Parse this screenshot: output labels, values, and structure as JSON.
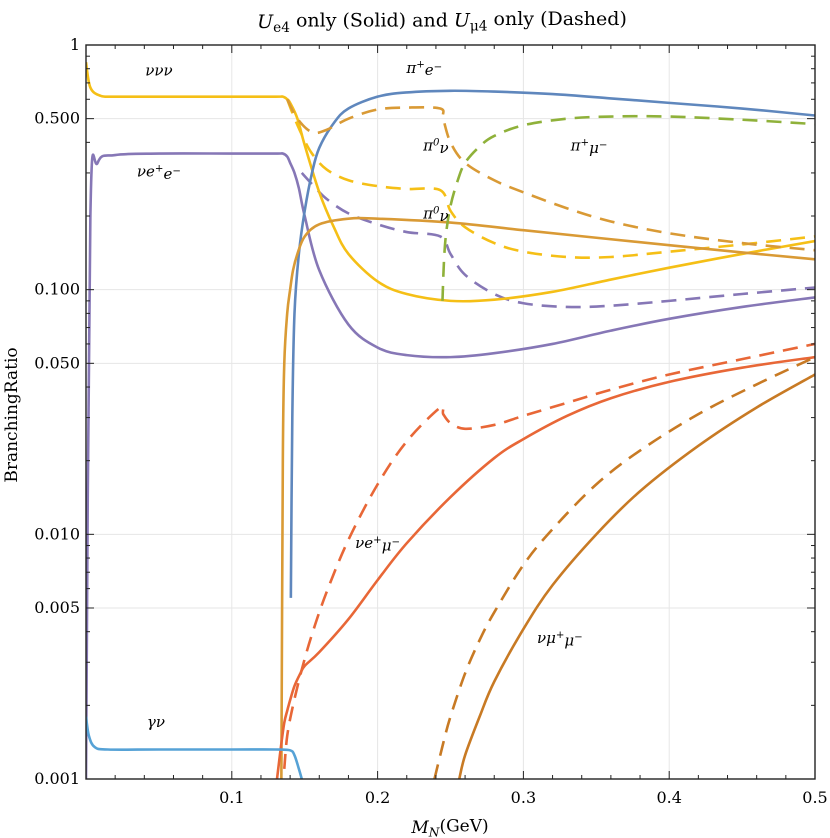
{
  "chart_data": {
    "type": "line",
    "title": "U_e4 only (Solid) and U_μ4 only (Dashed)",
    "title_parts": [
      {
        "t": "U",
        "italic": true
      },
      {
        "t": "e4",
        "sub": true
      },
      {
        "t": " only (Solid) and "
      },
      {
        "t": "U",
        "italic": true
      },
      {
        "t": "μ4",
        "sub": true
      },
      {
        "t": " only (Dashed)"
      }
    ],
    "xlabel": "M_N(GeV)",
    "xlabel_parts": [
      {
        "t": "M",
        "italic": true
      },
      {
        "t": "N",
        "sub": true,
        "italic": true
      },
      {
        "t": "(GeV)"
      }
    ],
    "ylabel": "BranchingRatio",
    "x_scale": "linear",
    "y_scale": "log",
    "xlim": [
      0.0,
      0.5
    ],
    "ylim": [
      0.001,
      1.0
    ],
    "x_ticks": [
      {
        "value": 0.1,
        "label": "0.1"
      },
      {
        "value": 0.2,
        "label": "0.2"
      },
      {
        "value": 0.3,
        "label": "0.3"
      },
      {
        "value": 0.4,
        "label": "0.4"
      },
      {
        "value": 0.5,
        "label": "0.5"
      }
    ],
    "y_ticks": [
      {
        "value": 1.0,
        "label": "1"
      },
      {
        "value": 0.5,
        "label": "0.500"
      },
      {
        "value": 0.1,
        "label": "0.100"
      },
      {
        "value": 0.05,
        "label": "0.050"
      },
      {
        "value": 0.01,
        "label": "0.010"
      },
      {
        "value": 0.005,
        "label": "0.005"
      },
      {
        "value": 0.001,
        "label": "0.001"
      }
    ],
    "series": [
      {
        "name": "νe+e- (Ue4)",
        "style": "solid",
        "color": "#8677b6",
        "x": [
          0.0,
          0.003,
          0.008,
          0.02,
          0.05,
          0.1,
          0.13,
          0.135,
          0.138,
          0.14,
          0.143,
          0.146,
          0.15,
          0.16,
          0.18,
          0.2,
          0.22,
          0.25,
          0.28,
          0.32,
          0.36,
          0.4,
          0.45,
          0.5
        ],
        "y": [
          0.001,
          0.2,
          0.33,
          0.355,
          0.36,
          0.36,
          0.36,
          0.36,
          0.35,
          0.33,
          0.3,
          0.26,
          0.2,
          0.12,
          0.072,
          0.058,
          0.054,
          0.053,
          0.055,
          0.06,
          0.068,
          0.076,
          0.085,
          0.093
        ]
      },
      {
        "name": "νe+e- (Uμ4)",
        "style": "dashed",
        "color": "#8677b6",
        "x": [
          0.148,
          0.155,
          0.165,
          0.18,
          0.2,
          0.22,
          0.243,
          0.25,
          0.26,
          0.28,
          0.3,
          0.33,
          0.36,
          0.4,
          0.45,
          0.5
        ],
        "y": [
          0.3,
          0.27,
          0.235,
          0.205,
          0.185,
          0.172,
          0.165,
          0.14,
          0.115,
          0.096,
          0.088,
          0.085,
          0.086,
          0.09,
          0.096,
          0.102
        ]
      },
      {
        "name": "ννν (Ue4)",
        "style": "solid",
        "color": "#f5bf16",
        "x": [
          0.0,
          0.003,
          0.01,
          0.02,
          0.05,
          0.1,
          0.13,
          0.135,
          0.138,
          0.14,
          0.145,
          0.15,
          0.16,
          0.17,
          0.18,
          0.2,
          0.22,
          0.25,
          0.28,
          0.32,
          0.36,
          0.4,
          0.45,
          0.5
        ],
        "y": [
          0.85,
          0.67,
          0.62,
          0.615,
          0.615,
          0.615,
          0.615,
          0.615,
          0.6,
          0.58,
          0.5,
          0.39,
          0.25,
          0.18,
          0.14,
          0.108,
          0.096,
          0.09,
          0.091,
          0.098,
          0.11,
          0.123,
          0.14,
          0.158
        ]
      },
      {
        "name": "ννν (Uμ4)",
        "style": "dashed",
        "color": "#f5bf16",
        "x": [
          0.138,
          0.142,
          0.148,
          0.155,
          0.165,
          0.18,
          0.2,
          0.22,
          0.243,
          0.25,
          0.26,
          0.28,
          0.3,
          0.33,
          0.36,
          0.4,
          0.45,
          0.5
        ],
        "y": [
          0.6,
          0.52,
          0.43,
          0.36,
          0.31,
          0.28,
          0.265,
          0.258,
          0.255,
          0.21,
          0.18,
          0.155,
          0.143,
          0.136,
          0.136,
          0.143,
          0.153,
          0.165
        ]
      },
      {
        "name": "π+e- (Ue4)",
        "style": "solid",
        "color": "#5f87bd",
        "x": [
          0.1405,
          0.1415,
          0.143,
          0.146,
          0.15,
          0.155,
          0.16,
          0.17,
          0.18,
          0.2,
          0.22,
          0.25,
          0.28,
          0.32,
          0.36,
          0.4,
          0.45,
          0.5
        ],
        "y": [
          0.0055,
          0.03,
          0.08,
          0.14,
          0.21,
          0.3,
          0.38,
          0.48,
          0.55,
          0.615,
          0.64,
          0.65,
          0.645,
          0.63,
          0.605,
          0.58,
          0.55,
          0.515
        ]
      },
      {
        "name": "π0ν (Ue4)",
        "style": "solid",
        "color": "#d99a35",
        "x": [
          0.134,
          0.135,
          0.136,
          0.138,
          0.14,
          0.142,
          0.145,
          0.15,
          0.16,
          0.18,
          0.2,
          0.25,
          0.3,
          0.35,
          0.4,
          0.45,
          0.5
        ],
        "y": [
          0.001,
          0.02,
          0.05,
          0.08,
          0.1,
          0.12,
          0.14,
          0.165,
          0.185,
          0.195,
          0.195,
          0.188,
          0.175,
          0.163,
          0.152,
          0.142,
          0.133
        ]
      },
      {
        "name": "π0ν (Uμ4)",
        "style": "dashed",
        "color": "#d99a35",
        "x": [
          0.138,
          0.145,
          0.155,
          0.165,
          0.18,
          0.2,
          0.22,
          0.243,
          0.245,
          0.25,
          0.26,
          0.28,
          0.3,
          0.33,
          0.36,
          0.4,
          0.45,
          0.5
        ],
        "y": [
          0.6,
          0.5,
          0.44,
          0.45,
          0.5,
          0.545,
          0.555,
          0.55,
          0.5,
          0.4,
          0.33,
          0.28,
          0.25,
          0.215,
          0.19,
          0.17,
          0.155,
          0.145
        ]
      },
      {
        "name": "π+μ- (Uμ4)",
        "style": "dashed",
        "color": "#8fb13a",
        "x": [
          0.2445,
          0.2455,
          0.247,
          0.25,
          0.255,
          0.26,
          0.27,
          0.28,
          0.3,
          0.33,
          0.36,
          0.4,
          0.45,
          0.5
        ],
        "y": [
          0.09,
          0.13,
          0.17,
          0.22,
          0.28,
          0.33,
          0.385,
          0.425,
          0.47,
          0.5,
          0.51,
          0.51,
          0.495,
          0.475
        ]
      },
      {
        "name": "νe+μ- (Ue4)",
        "style": "solid",
        "color": "#e86737",
        "x": [
          0.131,
          0.134,
          0.136,
          0.138,
          0.14,
          0.143,
          0.147,
          0.15,
          0.16,
          0.18,
          0.2,
          0.22,
          0.25,
          0.28,
          0.3,
          0.33,
          0.36,
          0.4,
          0.45,
          0.5
        ],
        "y": [
          0.001,
          0.0014,
          0.0017,
          0.0019,
          0.0021,
          0.0024,
          0.0027,
          0.0029,
          0.0033,
          0.0045,
          0.0065,
          0.0092,
          0.0142,
          0.0205,
          0.0245,
          0.0305,
          0.036,
          0.042,
          0.048,
          0.053
        ]
      },
      {
        "name": "νe+μ- (Uμ4)",
        "style": "dashed",
        "color": "#e86737",
        "x": [
          0.136,
          0.138,
          0.142,
          0.148,
          0.155,
          0.165,
          0.18,
          0.2,
          0.22,
          0.243,
          0.245,
          0.25,
          0.26,
          0.28,
          0.3,
          0.33,
          0.36,
          0.4,
          0.45,
          0.5
        ],
        "y": [
          0.0011,
          0.0015,
          0.002,
          0.0028,
          0.0039,
          0.0058,
          0.0095,
          0.016,
          0.024,
          0.033,
          0.031,
          0.0285,
          0.027,
          0.028,
          0.0305,
          0.0345,
          0.039,
          0.045,
          0.052,
          0.06
        ]
      },
      {
        "name": "νμ+μ- (Ue4)",
        "style": "solid",
        "color": "#c87a24",
        "x": [
          0.256,
          0.26,
          0.27,
          0.28,
          0.3,
          0.32,
          0.35,
          0.38,
          0.42,
          0.46,
          0.5
        ],
        "y": [
          0.001,
          0.00125,
          0.0018,
          0.0025,
          0.0041,
          0.0062,
          0.01,
          0.015,
          0.023,
          0.033,
          0.045
        ]
      },
      {
        "name": "νμ+μ- (Uμ4)",
        "style": "dashed",
        "color": "#c87a24",
        "x": [
          0.239,
          0.245,
          0.25,
          0.26,
          0.27,
          0.28,
          0.3,
          0.32,
          0.35,
          0.38,
          0.42,
          0.46,
          0.5
        ],
        "y": [
          0.001,
          0.0014,
          0.0018,
          0.0027,
          0.0037,
          0.0048,
          0.0075,
          0.0105,
          0.016,
          0.022,
          0.031,
          0.041,
          0.053
        ]
      },
      {
        "name": "γν (Ue4)",
        "style": "solid",
        "color": "#56a2d6",
        "x": [
          0.0,
          0.002,
          0.006,
          0.015,
          0.05,
          0.1,
          0.13,
          0.14,
          0.143,
          0.146,
          0.148
        ],
        "y": [
          0.0018,
          0.0015,
          0.00135,
          0.00132,
          0.00132,
          0.00132,
          0.00132,
          0.00131,
          0.00125,
          0.0011,
          0.001
        ]
      }
    ],
    "annotations": [
      {
        "id": "nununu",
        "text": "ννν",
        "parts": [
          {
            "t": "ννν"
          }
        ],
        "x": 0.05,
        "y": 0.75
      },
      {
        "id": "pi-e",
        "text": "π+e-",
        "parts": [
          {
            "t": "π"
          },
          {
            "t": "+",
            "sup": true
          },
          {
            "t": "e"
          },
          {
            "t": "−",
            "sup": true
          }
        ],
        "x": 0.232,
        "y": 0.77
      },
      {
        "id": "nu-ee",
        "text": "νe+e-",
        "parts": [
          {
            "t": "νe"
          },
          {
            "t": "+",
            "sup": true
          },
          {
            "t": "e"
          },
          {
            "t": "−",
            "sup": true
          }
        ],
        "x": 0.05,
        "y": 0.29
      },
      {
        "id": "pi0-nu-upper",
        "text": "π0ν",
        "parts": [
          {
            "t": "π"
          },
          {
            "t": "0",
            "sup": true
          },
          {
            "t": "ν"
          }
        ],
        "x": 0.24,
        "y": 0.37
      },
      {
        "id": "pi-mu",
        "text": "π+μ-",
        "parts": [
          {
            "t": "π"
          },
          {
            "t": "+",
            "sup": true
          },
          {
            "t": "μ"
          },
          {
            "t": "−",
            "sup": true
          }
        ],
        "x": 0.345,
        "y": 0.37
      },
      {
        "id": "pi0-nu-lower",
        "text": "π0ν",
        "parts": [
          {
            "t": "π"
          },
          {
            "t": "0",
            "sup": true
          },
          {
            "t": "ν"
          }
        ],
        "x": 0.24,
        "y": 0.195
      },
      {
        "id": "nu-emu",
        "text": "νe+μ-",
        "parts": [
          {
            "t": "νe"
          },
          {
            "t": "+",
            "sup": true
          },
          {
            "t": "μ"
          },
          {
            "t": "−",
            "sup": true
          }
        ],
        "x": 0.2,
        "y": 0.0088
      },
      {
        "id": "nu-mumu",
        "text": "νμ+μ-",
        "parts": [
          {
            "t": "νμ"
          },
          {
            "t": "+",
            "sup": true
          },
          {
            "t": "μ"
          },
          {
            "t": "−",
            "sup": true
          }
        ],
        "x": 0.325,
        "y": 0.0036
      },
      {
        "id": "gamma-nu",
        "text": "γν",
        "parts": [
          {
            "t": "γν"
          }
        ],
        "x": 0.048,
        "y": 0.00163
      }
    ]
  }
}
